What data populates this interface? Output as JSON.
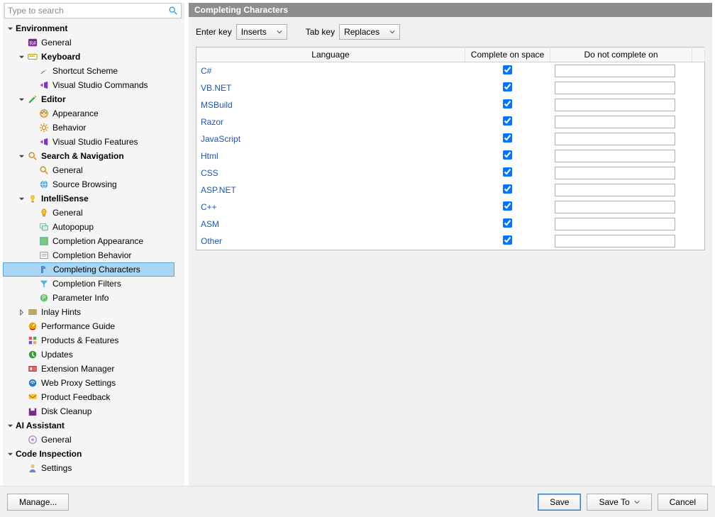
{
  "search": {
    "placeholder": "Type to search"
  },
  "panel": {
    "title": "Completing Characters"
  },
  "controls": {
    "enterKeyLabel": "Enter key",
    "enterKeyValue": "Inserts",
    "tabKeyLabel": "Tab key",
    "tabKeyValue": "Replaces"
  },
  "columns": {
    "lang": "Language",
    "complete": "Complete on space",
    "dnc": "Do not complete on"
  },
  "rows": [
    {
      "lang": "C#",
      "complete": true,
      "dnc": ""
    },
    {
      "lang": "VB.NET",
      "complete": true,
      "dnc": ""
    },
    {
      "lang": "MSBuild",
      "complete": true,
      "dnc": ""
    },
    {
      "lang": "Razor",
      "complete": true,
      "dnc": ""
    },
    {
      "lang": "JavaScript",
      "complete": true,
      "dnc": ""
    },
    {
      "lang": "Html",
      "complete": true,
      "dnc": ""
    },
    {
      "lang": "CSS",
      "complete": true,
      "dnc": ""
    },
    {
      "lang": "ASP.NET",
      "complete": true,
      "dnc": ""
    },
    {
      "lang": "C++",
      "complete": true,
      "dnc": ""
    },
    {
      "lang": "ASM",
      "complete": true,
      "dnc": ""
    },
    {
      "lang": "Other",
      "complete": true,
      "dnc": ""
    }
  ],
  "tree": [
    {
      "d": 0,
      "label": "Environment",
      "bold": true,
      "arrow": "down",
      "icon": "none"
    },
    {
      "d": 1,
      "label": "General",
      "icon": "rsharp"
    },
    {
      "d": 1,
      "label": "Keyboard",
      "bold": true,
      "arrow": "down",
      "icon": "keyboard"
    },
    {
      "d": 2,
      "label": "Shortcut Scheme",
      "icon": "wrench"
    },
    {
      "d": 2,
      "label": "Visual Studio Commands",
      "icon": "vs"
    },
    {
      "d": 1,
      "label": "Editor",
      "bold": true,
      "arrow": "down",
      "icon": "pencil"
    },
    {
      "d": 2,
      "label": "Appearance",
      "icon": "palette"
    },
    {
      "d": 2,
      "label": "Behavior",
      "icon": "gear"
    },
    {
      "d": 2,
      "label": "Visual Studio Features",
      "icon": "vs"
    },
    {
      "d": 1,
      "label": "Search & Navigation",
      "bold": true,
      "arrow": "down",
      "icon": "search"
    },
    {
      "d": 2,
      "label": "General",
      "icon": "search"
    },
    {
      "d": 2,
      "label": "Source Browsing",
      "icon": "globe"
    },
    {
      "d": 1,
      "label": "IntelliSense",
      "bold": true,
      "arrow": "down",
      "icon": "bulb"
    },
    {
      "d": 2,
      "label": "General",
      "icon": "bulb2"
    },
    {
      "d": 2,
      "label": "Autopopup",
      "icon": "popup"
    },
    {
      "d": 2,
      "label": "Completion Appearance",
      "icon": "appear"
    },
    {
      "d": 2,
      "label": "Completion Behavior",
      "icon": "behave"
    },
    {
      "d": 2,
      "label": "Completing Characters",
      "icon": "complete",
      "selected": true
    },
    {
      "d": 2,
      "label": "Completion Filters",
      "icon": "filter"
    },
    {
      "d": 2,
      "label": "Parameter Info",
      "icon": "param"
    },
    {
      "d": 1,
      "label": "Inlay Hints",
      "arrow": "right",
      "icon": "inlay"
    },
    {
      "d": 1,
      "label": "Performance Guide",
      "icon": "perf"
    },
    {
      "d": 1,
      "label": "Products & Features",
      "icon": "grid"
    },
    {
      "d": 1,
      "label": "Updates",
      "icon": "updates"
    },
    {
      "d": 1,
      "label": "Extension Manager",
      "icon": "ext"
    },
    {
      "d": 1,
      "label": "Web Proxy Settings",
      "icon": "proxy"
    },
    {
      "d": 1,
      "label": "Product Feedback",
      "icon": "feedback"
    },
    {
      "d": 1,
      "label": "Disk Cleanup",
      "icon": "disk"
    },
    {
      "d": 0,
      "label": "AI Assistant",
      "bold": true,
      "arrow": "down",
      "icon": "none"
    },
    {
      "d": 1,
      "label": "General",
      "icon": "ai"
    },
    {
      "d": 0,
      "label": "Code Inspection",
      "bold": true,
      "arrow": "down",
      "icon": "none"
    },
    {
      "d": 1,
      "label": "Settings",
      "icon": "person"
    }
  ],
  "footer": {
    "manage": "Manage...",
    "save": "Save",
    "saveTo": "Save To",
    "cancel": "Cancel"
  },
  "colors": {
    "panelHeader": "#8d8d8d",
    "selectedTreeBg": "#a9d6f5",
    "link": "#1a57b8"
  }
}
